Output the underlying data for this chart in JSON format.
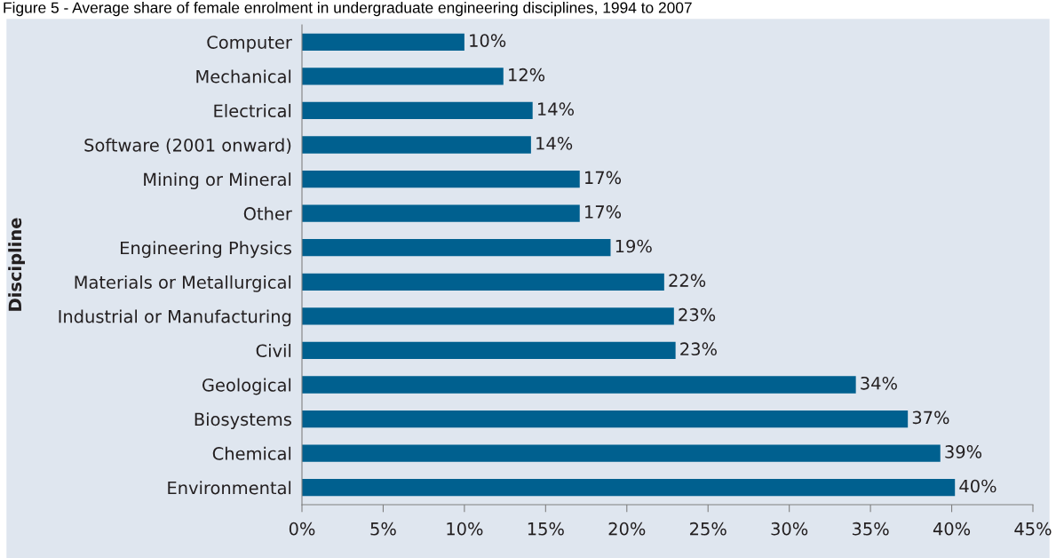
{
  "chart_data": {
    "type": "bar",
    "orientation": "horizontal",
    "title": "Figure 5 - Average share of female enrolment in undergraduate engineering disciplines, 1994 to 2007",
    "ylabel": "Discipline",
    "categories": [
      "Computer",
      "Mechanical",
      "Electrical",
      "Software (2001 onward)",
      "Mining or Mineral",
      "Other",
      "Engineering Physics",
      "Materials or Metallurgical",
      "Industrial or Manufacturing",
      "Civil",
      "Geological",
      "Biosystems",
      "Chemical",
      "Environmental"
    ],
    "values": [
      10,
      12.4,
      14.2,
      14.1,
      17.1,
      17.1,
      19,
      22.3,
      22.9,
      23,
      34.1,
      37.3,
      39.3,
      40.2
    ],
    "value_labels": [
      "10%",
      "12%",
      "14%",
      "14%",
      "17%",
      "17%",
      "19%",
      "22%",
      "23%",
      "23%",
      "34%",
      "37%",
      "39%",
      "40%"
    ],
    "color": "#00608f",
    "xlim": [
      0,
      45
    ],
    "xticks": [
      {
        "value": 0,
        "label": "0%"
      },
      {
        "value": 5,
        "label": "5%"
      },
      {
        "value": 10,
        "label": "10%"
      },
      {
        "value": 15,
        "label": "15%"
      },
      {
        "value": 20,
        "label": "20%"
      },
      {
        "value": 25,
        "label": "25%"
      },
      {
        "value": 30,
        "label": "30%"
      },
      {
        "value": 35,
        "label": "35%"
      },
      {
        "value": 40,
        "label": "40%"
      },
      {
        "value": 45,
        "label": "45%"
      }
    ],
    "grid": false
  }
}
